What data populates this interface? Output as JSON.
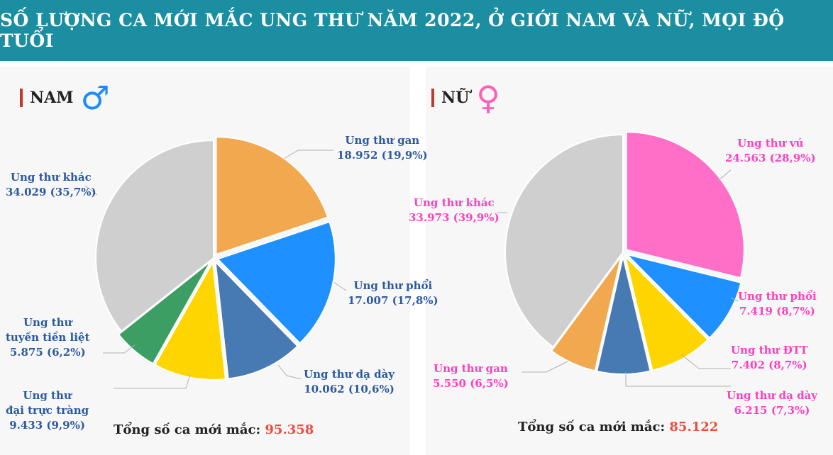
{
  "header": {
    "title": "SỐ LƯỢNG CA MỚI MẮC UNG THƯ NĂM 2022, Ở GIỚI NAM VÀ NỮ, MỌI ĐỘ TUỔI"
  },
  "colors": {
    "gan_male": "#f2a84f",
    "phoi": "#1e90ff",
    "da_day": "#4779b3",
    "dai_truc_trang": "#ffd500",
    "tuyen_tien_liet": "#3d9e64",
    "khac": "#cfcfcf",
    "vu": "#ff6ec7",
    "dtt": "#ffd500",
    "gan_female": "#f2a84f",
    "male_text": "#2c5aa0",
    "female_text": "#ff3fbf",
    "total_value": "#ef4b3c"
  },
  "chart_data": [
    {
      "type": "pie",
      "title": "NAM",
      "icon": "male-symbol-icon",
      "slices": [
        {
          "label_lines": [
            "Ung thư gan"
          ],
          "value": 18952,
          "value_text": "18.952 (19,9%)",
          "percent": 19.9
        },
        {
          "label_lines": [
            "Ung thư phổi"
          ],
          "value": 17007,
          "value_text": "17.007 (17,8%)",
          "percent": 17.8
        },
        {
          "label_lines": [
            "Ung thư dạ dày"
          ],
          "value": 10062,
          "value_text": "10.062 (10,6%)",
          "percent": 10.6
        },
        {
          "label_lines": [
            "Ung thư",
            "đại trực tràng"
          ],
          "value": 9433,
          "value_text": "9.433 (9,9%)",
          "percent": 9.9
        },
        {
          "label_lines": [
            "Ung thư",
            "tuyến tiền liệt"
          ],
          "value": 5875,
          "value_text": "5.875 (6,2%)",
          "percent": 6.2
        },
        {
          "label_lines": [
            "Ung thư khác"
          ],
          "value": 34029,
          "value_text": "34.029 (35,7%)",
          "percent": 35.7
        }
      ],
      "total_label": "Tổng số ca mới mắc:",
      "total_value": "95.358"
    },
    {
      "type": "pie",
      "title": "NỮ",
      "icon": "female-symbol-icon",
      "slices": [
        {
          "label_lines": [
            "Ung thư vú"
          ],
          "value": 24563,
          "value_text": "24.563 (28,9%)",
          "percent": 28.9
        },
        {
          "label_lines": [
            "Ung thư phổi"
          ],
          "value": 7419,
          "value_text": "7.419 (8,7%)",
          "percent": 8.7
        },
        {
          "label_lines": [
            "Ung thư ĐTT"
          ],
          "value": 7402,
          "value_text": "7.402 (8,7%)",
          "percent": 8.7
        },
        {
          "label_lines": [
            "Ung thư dạ dày"
          ],
          "value": 6215,
          "value_text": "6.215 (7,3%)",
          "percent": 7.3
        },
        {
          "label_lines": [
            "Ung thư gan"
          ],
          "value": 5550,
          "value_text": "5.550 (6,5%)",
          "percent": 6.5
        },
        {
          "label_lines": [
            "Ung thư khác"
          ],
          "value": 33973,
          "value_text": "33.973 (39,9%)",
          "percent": 39.9
        }
      ],
      "total_label": "Tổng số ca mới mắc:",
      "total_value": "85.122"
    }
  ]
}
